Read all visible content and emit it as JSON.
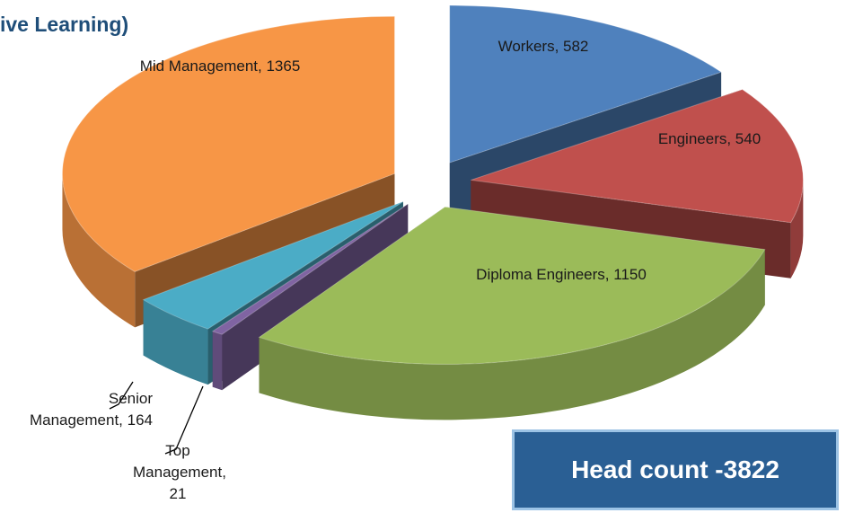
{
  "title": "ive Learning)",
  "chart_data": {
    "type": "pie3d",
    "values": [
      582,
      540,
      1150,
      21,
      164,
      1365
    ],
    "value_labels": [
      "Workers, 582",
      "Engineers, 540",
      "Diploma Engineers, 1150",
      "Top Management, 21",
      "Senior Management, 164",
      "Mid Management, 1365"
    ],
    "colors": [
      "#4f81bd",
      "#c0504d",
      "#9bbb59",
      "#8064a2",
      "#4bacc6",
      "#f79646"
    ]
  },
  "callout": "Head count -3822"
}
